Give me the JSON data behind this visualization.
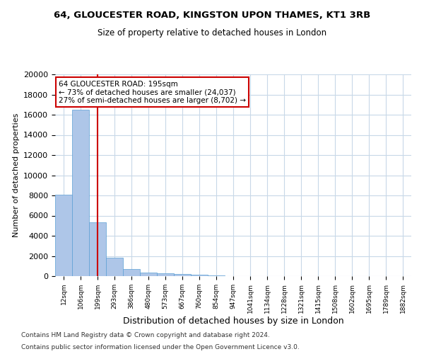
{
  "title1": "64, GLOUCESTER ROAD, KINGSTON UPON THAMES, KT1 3RB",
  "title2": "Size of property relative to detached houses in London",
  "xlabel": "Distribution of detached houses by size in London",
  "ylabel": "Number of detached properties",
  "bin_labels": [
    "12sqm",
    "106sqm",
    "199sqm",
    "293sqm",
    "386sqm",
    "480sqm",
    "573sqm",
    "667sqm",
    "760sqm",
    "854sqm",
    "947sqm",
    "1041sqm",
    "1134sqm",
    "1228sqm",
    "1321sqm",
    "1415sqm",
    "1508sqm",
    "1602sqm",
    "1695sqm",
    "1789sqm",
    "1882sqm"
  ],
  "bar_heights": [
    8100,
    16500,
    5300,
    1800,
    700,
    350,
    275,
    200,
    150,
    75,
    30,
    10,
    5,
    3,
    2,
    1,
    1,
    0,
    0,
    0,
    0
  ],
  "bar_color": "#aec6e8",
  "bar_edge_color": "#5a9fd4",
  "vline_x": 2,
  "vline_color": "#cc0000",
  "annotation_line1": "64 GLOUCESTER ROAD: 195sqm",
  "annotation_line2": "← 73% of detached houses are smaller (24,037)",
  "annotation_line3": "27% of semi-detached houses are larger (8,702) →",
  "annotation_box_color": "#cc0000",
  "ylim": [
    0,
    20000
  ],
  "yticks": [
    0,
    2000,
    4000,
    6000,
    8000,
    10000,
    12000,
    14000,
    16000,
    18000,
    20000
  ],
  "footer1": "Contains HM Land Registry data © Crown copyright and database right 2024.",
  "footer2": "Contains public sector information licensed under the Open Government Licence v3.0.",
  "bg_color": "#ffffff",
  "grid_color": "#c8d8e8"
}
